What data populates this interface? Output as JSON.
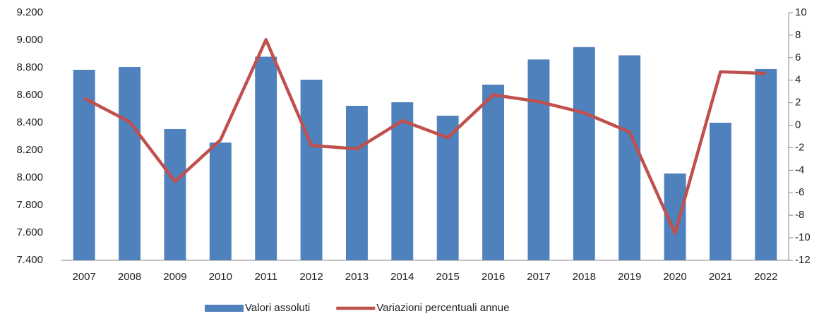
{
  "chart_data": {
    "type": "bar_line",
    "categories": [
      "2007",
      "2008",
      "2009",
      "2010",
      "2011",
      "2012",
      "2013",
      "2014",
      "2015",
      "2016",
      "2017",
      "2018",
      "2019",
      "2020",
      "2021",
      "2022"
    ],
    "series": [
      {
        "name": "Valori assoluti",
        "color": "#4f81bd",
        "type": "bar",
        "values": [
          8785,
          8805,
          8354,
          8256,
          8880,
          8713,
          8523,
          8549,
          8451,
          8677,
          8860,
          8950,
          8890,
          8031,
          8400,
          8790
        ]
      },
      {
        "name": "Variazioni percentuali annue",
        "color": "#c0504d",
        "type": "line",
        "axis": "y2",
        "values": [
          2.4,
          0.3,
          -5,
          -1.3,
          7.6,
          -1.8,
          -2.1,
          0.4,
          -1.1,
          2.7,
          2.1,
          1.1,
          -0.6,
          -9.6,
          4.75,
          4.6
        ]
      }
    ],
    "ylim": [
      7400,
      9200
    ],
    "yticks": [
      {
        "value": 7400,
        "label": "7.400"
      },
      {
        "value": 7600,
        "label": "7.600"
      },
      {
        "value": 7800,
        "label": "7.800"
      },
      {
        "value": 8000,
        "label": "8.000"
      },
      {
        "value": 8200,
        "label": "8.200"
      },
      {
        "value": 8400,
        "label": "8.400"
      },
      {
        "value": 8600,
        "label": "8.600"
      },
      {
        "value": 8800,
        "label": "8.800"
      },
      {
        "value": 9000,
        "label": "9.000"
      },
      {
        "value": 9200,
        "label": "9.200"
      }
    ],
    "y2lim": [
      -12,
      10
    ],
    "y2ticks": [
      -12,
      -10,
      -8,
      -6,
      -4,
      -2,
      0,
      2,
      4,
      6,
      8,
      10
    ],
    "legend": "bottom"
  }
}
